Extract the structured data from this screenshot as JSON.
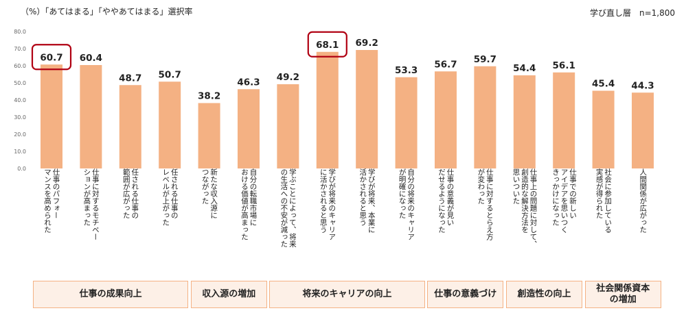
{
  "header": {
    "title": "（%）「あてはまる」「ややあてはまる」選択率",
    "sample": "学び直し層　n=1,800"
  },
  "chart_data": {
    "type": "bar",
    "title": "（%）「あてはまる」「ややあてはまる」選択率",
    "ylim": [
      0,
      80
    ],
    "yticks": [
      "80.0",
      "70.0",
      "60.0",
      "50.0",
      "40.0",
      "30.0",
      "20.0",
      "10.0",
      "0.0"
    ],
    "grid": false,
    "categories": [
      [
        "仕事のパフォー",
        "マンスを高められた"
      ],
      [
        "仕事に対するモチベー",
        "ションが高まった"
      ],
      [
        "任される仕事の",
        "範囲が広がった"
      ],
      [
        "任される仕事の",
        "レベルが上がった"
      ],
      [
        "新たな収入源に",
        "つながった"
      ],
      [
        "自分の転職市場に",
        "おける価値が高まった"
      ],
      [
        "学ぶことによって、将来",
        "の生活への不安が減った"
      ],
      [
        "学びが将来のキャリア",
        "に活かされると思う"
      ],
      [
        "学びが将来、本業に",
        "活かされると思う"
      ],
      [
        "自分の将来のキャリア",
        "が明確になった"
      ],
      [
        "仕事の意義が見い",
        "だせるようになった"
      ],
      [
        "仕事に対するとらえ方",
        "が変わった"
      ],
      [
        "仕事上の問題に対して、",
        "創造的な解決方法を",
        "思いついた"
      ],
      [
        "仕事での新しい",
        "アイデアを思いつく",
        "きっかけになった"
      ],
      [
        "社会に参加している",
        "実感が得られた"
      ],
      [
        "人間関係が広がった"
      ]
    ],
    "values": [
      60.7,
      60.4,
      48.7,
      50.7,
      38.2,
      46.3,
      49.2,
      68.1,
      69.2,
      53.3,
      56.7,
      59.7,
      54.4,
      56.1,
      45.4,
      44.3
    ],
    "value_labels": [
      "60.7",
      "60.4",
      "48.7",
      "50.7",
      "38.2",
      "46.3",
      "49.2",
      "68.1",
      "69.2",
      "53.3",
      "56.7",
      "59.7",
      "54.4",
      "56.1",
      "45.4",
      "44.3"
    ],
    "highlighted": [
      0,
      7
    ],
    "bar_color": "#f4b183",
    "highlight_color": "#b00012",
    "groups": [
      {
        "label": "仕事の成果向上",
        "members": [
          0,
          1,
          2,
          3
        ]
      },
      {
        "label": "収入源の増加",
        "members": [
          4,
          5
        ]
      },
      {
        "label": "将来のキャリアの向上",
        "members": [
          6,
          7,
          8,
          9
        ]
      },
      {
        "label": "仕事の意義づけ",
        "members": [
          10,
          11
        ]
      },
      {
        "label": "創造性の向上",
        "members": [
          12,
          13
        ]
      },
      {
        "label": "社会関係資本の増加",
        "members": [
          14,
          15
        ]
      }
    ]
  }
}
